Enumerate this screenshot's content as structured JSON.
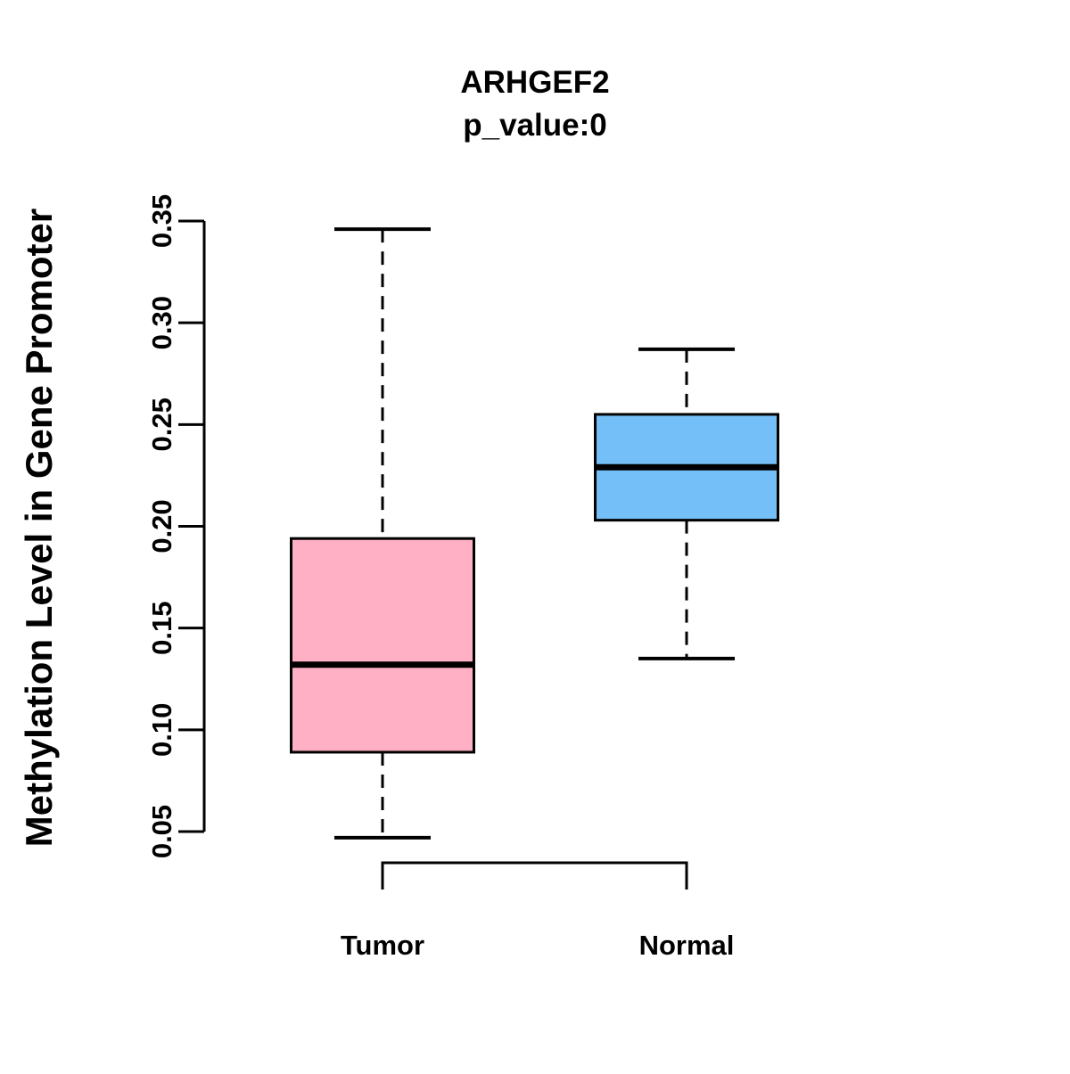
{
  "chart_data": {
    "type": "boxplot",
    "title": "ARHGEF2",
    "subtitle": "p_value:0",
    "ylabel": "Methylation Level in Gene Promoter",
    "categories": [
      "Tumor",
      "Normal"
    ],
    "series": [
      {
        "name": "Tumor",
        "color": "#FFB0C4",
        "whisker_low": 0.047,
        "q1": 0.089,
        "median": 0.132,
        "q3": 0.194,
        "whisker_high": 0.346
      },
      {
        "name": "Normal",
        "color": "#74BFF7",
        "whisker_low": 0.135,
        "q1": 0.203,
        "median": 0.229,
        "q3": 0.255,
        "whisker_high": 0.287
      }
    ],
    "y_axis": {
      "min": 0.05,
      "max": 0.35,
      "ticks": [
        0.05,
        0.1,
        0.15,
        0.2,
        0.25,
        0.3,
        0.35
      ],
      "tick_labels": [
        "0.05",
        "0.10",
        "0.15",
        "0.20",
        "0.25",
        "0.30",
        "0.35"
      ]
    },
    "comparison_bracket": {
      "between": [
        "Tumor",
        "Normal"
      ]
    },
    "line_color": "#000000",
    "background_color": "#FFFFFF"
  }
}
